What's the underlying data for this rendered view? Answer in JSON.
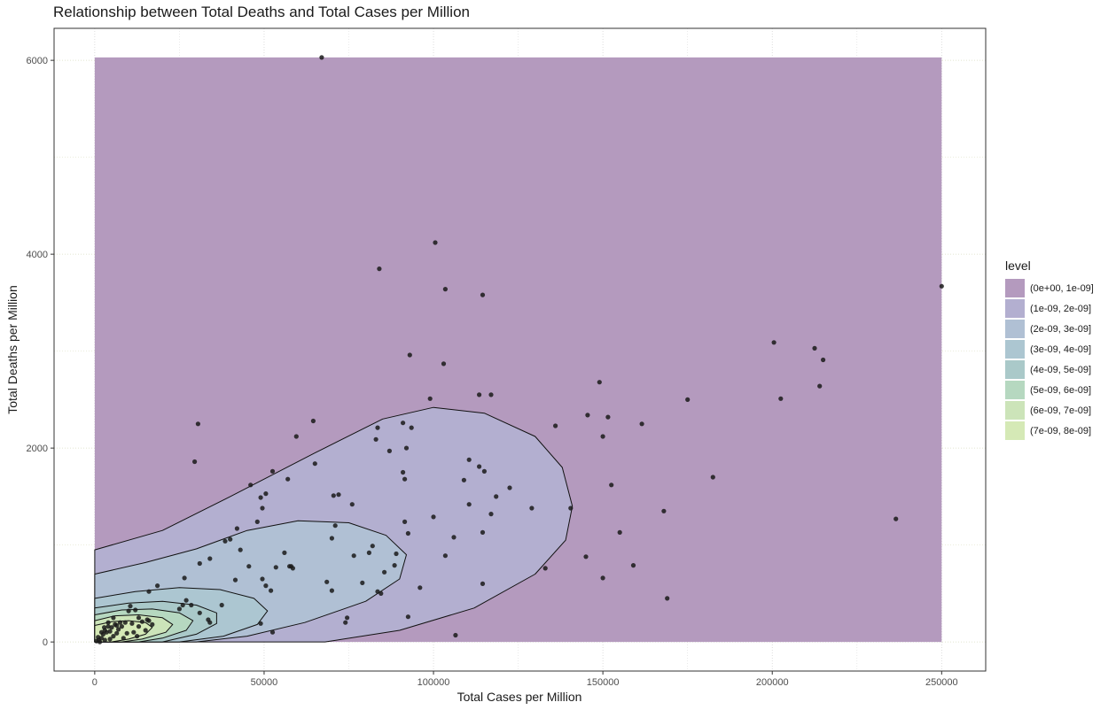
{
  "chart_data": {
    "type": "scatter",
    "title": "Relationship between Total Deaths and Total Cases per Million",
    "xlabel": "Total Cases per Million",
    "ylabel": "Total Deaths per Million",
    "xlim": [
      -12000,
      263000
    ],
    "ylim": [
      -300,
      6330
    ],
    "x_ticks": [
      0,
      50000,
      100000,
      150000,
      200000,
      250000
    ],
    "x_tick_labels": [
      "0",
      "50000",
      "100000",
      "150000",
      "200000",
      "250000"
    ],
    "y_ticks": [
      0,
      2000,
      4000,
      6000
    ],
    "y_tick_labels": [
      "0",
      "2000",
      "4000",
      "6000"
    ],
    "grid": true,
    "legend_position": "right",
    "legend": {
      "title": "level",
      "items": [
        {
          "label": "(0e+00, 1e-09]",
          "color": "#b49abe"
        },
        {
          "label": "(1e-09, 2e-09]",
          "color": "#b3afd0"
        },
        {
          "label": "(2e-09, 3e-09]",
          "color": "#b0c0d4"
        },
        {
          "label": "(3e-09, 4e-09]",
          "color": "#acc6d1"
        },
        {
          "label": "(4e-09, 5e-09]",
          "color": "#aac9c9"
        },
        {
          "label": "(5e-09, 6e-09]",
          "color": "#b6d8c0"
        },
        {
          "label": "(6e-09, 7e-09]",
          "color": "#cce4b9"
        },
        {
          "label": "(7e-09, 8e-09]",
          "color": "#d5e9b6"
        }
      ]
    },
    "density_region": {
      "x": [
        0,
        250000
      ],
      "y": [
        0,
        6030
      ]
    },
    "points": [
      [
        67000,
        6030
      ],
      [
        100500,
        4120
      ],
      [
        84000,
        3850
      ],
      [
        103500,
        3640
      ],
      [
        114500,
        3580
      ],
      [
        250000,
        3670
      ],
      [
        200500,
        3090
      ],
      [
        212500,
        3030
      ],
      [
        215000,
        2910
      ],
      [
        214000,
        2640
      ],
      [
        202500,
        2510
      ],
      [
        175000,
        2500
      ],
      [
        93000,
        2960
      ],
      [
        103000,
        2870
      ],
      [
        149000,
        2680
      ],
      [
        113500,
        2550
      ],
      [
        117000,
        2550
      ],
      [
        99000,
        2510
      ],
      [
        145500,
        2340
      ],
      [
        151500,
        2320
      ],
      [
        136000,
        2230
      ],
      [
        161500,
        2250
      ],
      [
        150000,
        2120
      ],
      [
        30500,
        2250
      ],
      [
        64500,
        2280
      ],
      [
        83500,
        2210
      ],
      [
        91000,
        2260
      ],
      [
        93500,
        2210
      ],
      [
        59500,
        2120
      ],
      [
        83000,
        2090
      ],
      [
        29500,
        1860
      ],
      [
        65000,
        1840
      ],
      [
        87000,
        1970
      ],
      [
        92000,
        2000
      ],
      [
        110500,
        1880
      ],
      [
        113500,
        1810
      ],
      [
        115000,
        1760
      ],
      [
        91000,
        1750
      ],
      [
        91500,
        1680
      ],
      [
        109000,
        1670
      ],
      [
        122500,
        1590
      ],
      [
        118500,
        1500
      ],
      [
        152500,
        1620
      ],
      [
        182500,
        1700
      ],
      [
        46000,
        1620
      ],
      [
        50500,
        1530
      ],
      [
        52500,
        1760
      ],
      [
        57000,
        1680
      ],
      [
        49000,
        1490
      ],
      [
        70500,
        1510
      ],
      [
        72000,
        1520
      ],
      [
        76000,
        1420
      ],
      [
        110500,
        1420
      ],
      [
        117000,
        1320
      ],
      [
        129000,
        1380
      ],
      [
        140500,
        1380
      ],
      [
        168000,
        1350
      ],
      [
        236500,
        1270
      ],
      [
        49500,
        1380
      ],
      [
        48000,
        1240
      ],
      [
        91500,
        1240
      ],
      [
        100000,
        1290
      ],
      [
        114500,
        1130
      ],
      [
        92500,
        1120
      ],
      [
        106000,
        1080
      ],
      [
        155000,
        1130
      ],
      [
        42000,
        1170
      ],
      [
        40000,
        1060
      ],
      [
        38500,
        1040
      ],
      [
        70000,
        1070
      ],
      [
        71000,
        1200
      ],
      [
        82000,
        990
      ],
      [
        56000,
        920
      ],
      [
        76500,
        890
      ],
      [
        81000,
        920
      ],
      [
        89000,
        910
      ],
      [
        103500,
        890
      ],
      [
        145000,
        880
      ],
      [
        31000,
        810
      ],
      [
        34000,
        860
      ],
      [
        43000,
        950
      ],
      [
        45500,
        780
      ],
      [
        53500,
        770
      ],
      [
        57500,
        780
      ],
      [
        58000,
        780
      ],
      [
        58500,
        760
      ],
      [
        85500,
        720
      ],
      [
        88500,
        790
      ],
      [
        133000,
        760
      ],
      [
        159000,
        790
      ],
      [
        150000,
        660
      ],
      [
        49500,
        650
      ],
      [
        50500,
        580
      ],
      [
        52000,
        530
      ],
      [
        41500,
        640
      ],
      [
        68500,
        620
      ],
      [
        70000,
        530
      ],
      [
        79000,
        610
      ],
      [
        83500,
        520
      ],
      [
        84500,
        500
      ],
      [
        96000,
        560
      ],
      [
        114500,
        600
      ],
      [
        169000,
        450
      ],
      [
        26500,
        660
      ],
      [
        37500,
        380
      ],
      [
        33500,
        230
      ],
      [
        34000,
        200
      ],
      [
        31000,
        300
      ],
      [
        27000,
        430
      ],
      [
        28500,
        380
      ],
      [
        26000,
        380
      ],
      [
        25000,
        340
      ],
      [
        49000,
        190
      ],
      [
        52500,
        100
      ],
      [
        74500,
        250
      ],
      [
        74000,
        200
      ],
      [
        92500,
        260
      ],
      [
        106500,
        70
      ],
      [
        18500,
        580
      ],
      [
        16000,
        520
      ],
      [
        10500,
        370
      ],
      [
        10000,
        320
      ],
      [
        12000,
        330
      ],
      [
        13000,
        250
      ],
      [
        14000,
        210
      ],
      [
        15500,
        230
      ],
      [
        17000,
        180
      ],
      [
        16000,
        220
      ],
      [
        13000,
        160
      ],
      [
        11000,
        190
      ],
      [
        9000,
        200
      ],
      [
        8000,
        160
      ],
      [
        7500,
        200
      ],
      [
        6000,
        180
      ],
      [
        5000,
        150
      ],
      [
        4500,
        110
      ],
      [
        4000,
        160
      ],
      [
        3500,
        100
      ],
      [
        3000,
        120
      ],
      [
        2500,
        80
      ],
      [
        2000,
        40
      ],
      [
        1500,
        0
      ],
      [
        1000,
        50
      ],
      [
        500,
        10
      ],
      [
        5500,
        60
      ],
      [
        6500,
        90
      ],
      [
        7000,
        130
      ],
      [
        9500,
        90
      ],
      [
        8500,
        40
      ],
      [
        3000,
        20
      ],
      [
        2000,
        100
      ],
      [
        4000,
        200
      ],
      [
        5500,
        250
      ],
      [
        6500,
        170
      ],
      [
        11500,
        100
      ],
      [
        15000,
        120
      ],
      [
        12500,
        60
      ],
      [
        4500,
        30
      ],
      [
        1200,
        20
      ],
      [
        2800,
        150
      ]
    ]
  }
}
